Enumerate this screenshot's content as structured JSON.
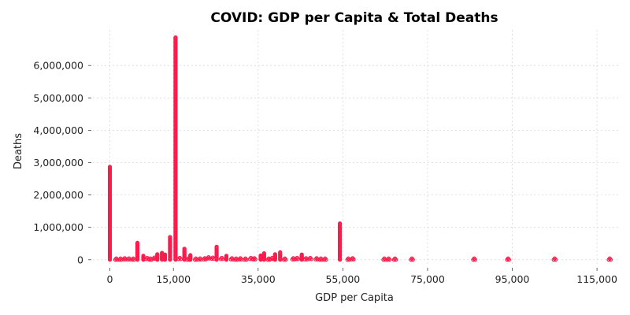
{
  "chart_data": {
    "type": "scatter",
    "title": "COVID: GDP per Capita & Total Deaths",
    "xlabel": "GDP per Capita",
    "ylabel": "Deaths",
    "xlim": [
      -4000,
      120000
    ],
    "ylim": [
      -200000,
      7100000
    ],
    "xticks": [
      0,
      15000,
      35000,
      55000,
      75000,
      95000,
      115000
    ],
    "xtick_labels": [
      "0",
      "15,000",
      "35,000",
      "55,000",
      "75,000",
      "95,000",
      "115,000"
    ],
    "yticks": [
      0,
      1000000,
      2000000,
      3000000,
      4000000,
      5000000,
      6000000
    ],
    "ytick_labels": [
      "0",
      "1,000,000",
      "2,000,000",
      "3,000,000",
      "4,000,000",
      "5,000,000",
      "6,000,000"
    ],
    "grid": true,
    "marker_color": "#ff1a4b",
    "columns": [
      {
        "x": 0,
        "max": 2870000
      },
      {
        "x": 6500,
        "max": 520000
      },
      {
        "x": 7900,
        "max": 120000
      },
      {
        "x": 11200,
        "max": 170000
      },
      {
        "x": 12300,
        "max": 210000
      },
      {
        "x": 13000,
        "max": 160000
      },
      {
        "x": 14200,
        "max": 700000
      },
      {
        "x": 15500,
        "max": 6870000
      },
      {
        "x": 17600,
        "max": 340000
      },
      {
        "x": 19000,
        "max": 140000
      },
      {
        "x": 25200,
        "max": 400000
      },
      {
        "x": 27500,
        "max": 120000
      },
      {
        "x": 35600,
        "max": 130000
      },
      {
        "x": 36400,
        "max": 200000
      },
      {
        "x": 39000,
        "max": 170000
      },
      {
        "x": 40200,
        "max": 230000
      },
      {
        "x": 45300,
        "max": 160000
      },
      {
        "x": 54300,
        "max": 1120000
      }
    ],
    "points": [
      {
        "x": 1500,
        "y": 0
      },
      {
        "x": 2500,
        "y": 0
      },
      {
        "x": 3500,
        "y": 10000
      },
      {
        "x": 4500,
        "y": 5000
      },
      {
        "x": 5500,
        "y": 0
      },
      {
        "x": 8800,
        "y": 20000
      },
      {
        "x": 9600,
        "y": 0
      },
      {
        "x": 10500,
        "y": 30000
      },
      {
        "x": 16500,
        "y": 20000
      },
      {
        "x": 18500,
        "y": 0
      },
      {
        "x": 20300,
        "y": 0
      },
      {
        "x": 21300,
        "y": 5000
      },
      {
        "x": 22400,
        "y": 10000
      },
      {
        "x": 23300,
        "y": 40000
      },
      {
        "x": 24300,
        "y": 30000
      },
      {
        "x": 26400,
        "y": 20000
      },
      {
        "x": 28800,
        "y": 10000
      },
      {
        "x": 29800,
        "y": 0
      },
      {
        "x": 30800,
        "y": 10000
      },
      {
        "x": 32000,
        "y": 0
      },
      {
        "x": 33300,
        "y": 20000
      },
      {
        "x": 34100,
        "y": 10000
      },
      {
        "x": 37500,
        "y": 0
      },
      {
        "x": 38300,
        "y": 20000
      },
      {
        "x": 41300,
        "y": 0
      },
      {
        "x": 43300,
        "y": 10000
      },
      {
        "x": 44200,
        "y": 20000
      },
      {
        "x": 46300,
        "y": 10000
      },
      {
        "x": 47300,
        "y": 20000
      },
      {
        "x": 48800,
        "y": 10000
      },
      {
        "x": 49800,
        "y": 0
      },
      {
        "x": 50800,
        "y": 0
      },
      {
        "x": 56300,
        "y": 0
      },
      {
        "x": 57300,
        "y": 10000
      },
      {
        "x": 64800,
        "y": 0
      },
      {
        "x": 65800,
        "y": 0
      },
      {
        "x": 67300,
        "y": 0
      },
      {
        "x": 71300,
        "y": 0
      },
      {
        "x": 86000,
        "y": 0
      },
      {
        "x": 94000,
        "y": 0
      },
      {
        "x": 105000,
        "y": 0
      },
      {
        "x": 118000,
        "y": 0
      }
    ]
  }
}
